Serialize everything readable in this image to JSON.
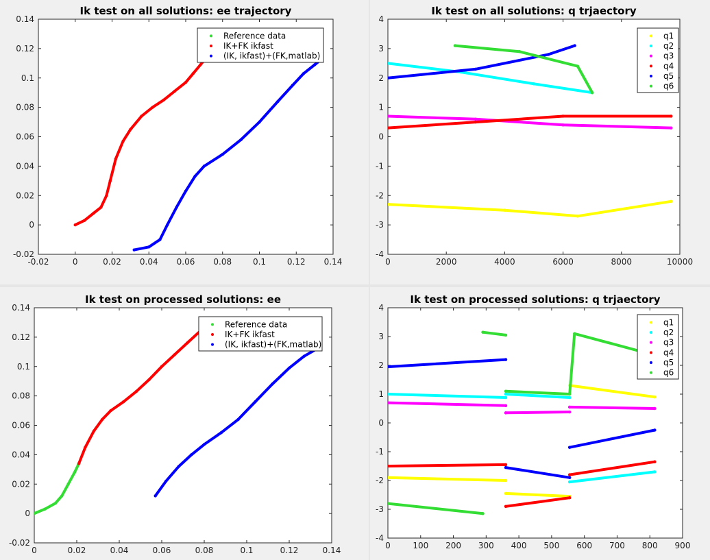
{
  "chart_data": [
    {
      "type": "scatter",
      "title": "Ik test on all solutions: ee trajectory",
      "xlim": [
        -0.02,
        0.14
      ],
      "ylim": [
        -0.02,
        0.14
      ],
      "xticks": [
        "-0.02",
        "0",
        "0.02",
        "0.04",
        "0.06",
        "0.08",
        "0.1",
        "0.12",
        "0.14"
      ],
      "yticks": [
        "-0.02",
        "0",
        "0.02",
        "0.04",
        "0.06",
        "0.08",
        "0.1",
        "0.12",
        "0.14"
      ],
      "legend_position": "top-right",
      "series": [
        {
          "name": "Reference data",
          "color": "#33dd33",
          "x": [],
          "y": []
        },
        {
          "name": "IK+FK ikfast",
          "color": "#ff0000",
          "x": [
            0,
            0.005,
            0.01,
            0.014,
            0.017,
            0.019,
            0.022,
            0.026,
            0.03,
            0.036,
            0.042,
            0.048,
            0.054,
            0.06,
            0.064,
            0.068,
            0.07
          ],
          "y": [
            0,
            0.003,
            0.008,
            0.012,
            0.02,
            0.03,
            0.045,
            0.057,
            0.065,
            0.074,
            0.08,
            0.085,
            0.091,
            0.097,
            0.103,
            0.109,
            0.112
          ]
        },
        {
          "name": "(IK, ikfast)+(FK,matlab)",
          "color": "#0000ff",
          "x": [
            0.032,
            0.04,
            0.046,
            0.05,
            0.055,
            0.06,
            0.065,
            0.07,
            0.08,
            0.09,
            0.1,
            0.11,
            0.118,
            0.124,
            0.13,
            0.133
          ],
          "y": [
            -0.017,
            -0.015,
            -0.01,
            0,
            0.012,
            0.023,
            0.033,
            0.04,
            0.048,
            0.058,
            0.07,
            0.084,
            0.095,
            0.103,
            0.109,
            0.112
          ]
        }
      ]
    },
    {
      "type": "scatter",
      "title": "Ik test on all solutions: q trjaectory",
      "xlim": [
        0,
        10000
      ],
      "ylim": [
        -4,
        4
      ],
      "xticks": [
        "0",
        "2000",
        "4000",
        "6000",
        "8000",
        "10000"
      ],
      "yticks": [
        "-4",
        "-3",
        "-2",
        "-1",
        "0",
        "1",
        "2",
        "3",
        "4"
      ],
      "legend_position": "top-right",
      "series": [
        {
          "name": "q1",
          "color": "#ffff00",
          "x": [
            0,
            4000,
            6500,
            9700
          ],
          "y": [
            -2.3,
            -2.5,
            -2.7,
            -2.2
          ]
        },
        {
          "name": "q2",
          "color": "#00ffff",
          "x": [
            0,
            2500,
            5000,
            7000
          ],
          "y": [
            2.5,
            2.2,
            1.8,
            1.5
          ]
        },
        {
          "name": "q3",
          "color": "#ff00ff",
          "x": [
            0,
            3000,
            6000,
            9700
          ],
          "y": [
            0.7,
            0.6,
            0.4,
            0.3
          ]
        },
        {
          "name": "q4",
          "color": "#ff0000",
          "x": [
            0,
            3000,
            6000,
            9700
          ],
          "y": [
            0.3,
            0.5,
            0.7,
            0.7
          ]
        },
        {
          "name": "q5",
          "color": "#0000ff",
          "x": [
            0,
            3000,
            5500,
            6400
          ],
          "y": [
            2.0,
            2.3,
            2.8,
            3.1
          ]
        },
        {
          "name": "q6",
          "color": "#33dd33",
          "x": [
            2300,
            4500,
            6500,
            7000
          ],
          "y": [
            3.1,
            2.9,
            2.4,
            1.5
          ]
        }
      ]
    },
    {
      "type": "scatter",
      "title": "Ik test on processed solutions: ee",
      "xlim": [
        0,
        0.14
      ],
      "ylim": [
        -0.02,
        0.14
      ],
      "xticks": [
        "0",
        "0.02",
        "0.04",
        "0.06",
        "0.08",
        "0.1",
        "0.12",
        "0.14"
      ],
      "yticks": [
        "-0.02",
        "0",
        "0.02",
        "0.04",
        "0.06",
        "0.08",
        "0.1",
        "0.12",
        "0.14"
      ],
      "legend_position": "top-right",
      "series": [
        {
          "name": "Reference data",
          "color": "#33dd33",
          "x": [
            0,
            0.005,
            0.01,
            0.013,
            0.016,
            0.019,
            0.021
          ],
          "y": [
            0,
            0.003,
            0.007,
            0.012,
            0.02,
            0.028,
            0.034
          ]
        },
        {
          "name": "IK+FK ikfast",
          "color": "#ff0000",
          "x": [
            0.021,
            0.024,
            0.028,
            0.032,
            0.036,
            0.042,
            0.048,
            0.054,
            0.06,
            0.066,
            0.072,
            0.078
          ],
          "y": [
            0.034,
            0.045,
            0.056,
            0.064,
            0.07,
            0.076,
            0.083,
            0.091,
            0.1,
            0.108,
            0.116,
            0.124
          ]
        },
        {
          "name": "(IK, ikfast)+(FK,matlab)",
          "color": "#0000ff",
          "x": [
            0.057,
            0.062,
            0.068,
            0.074,
            0.08,
            0.088,
            0.096,
            0.104,
            0.112,
            0.12,
            0.127,
            0.133
          ],
          "y": [
            0.012,
            0.022,
            0.032,
            0.04,
            0.047,
            0.055,
            0.064,
            0.076,
            0.088,
            0.099,
            0.107,
            0.112
          ]
        }
      ]
    },
    {
      "type": "scatter",
      "title": "Ik test on processed solutions: q trjaectory",
      "xlim": [
        0,
        900
      ],
      "ylim": [
        -4,
        4
      ],
      "xticks": [
        "0",
        "100",
        "200",
        "300",
        "400",
        "500",
        "600",
        "700",
        "800",
        "900"
      ],
      "yticks": [
        "-4",
        "-3",
        "-2",
        "-1",
        "0",
        "1",
        "2",
        "3",
        "4"
      ],
      "legend_position": "top-right",
      "series": [
        {
          "name": "q1",
          "color": "#ffff00",
          "x": [
            0,
            360,
            360,
            555,
            555,
            815
          ],
          "y": [
            -1.9,
            -2.0,
            -2.45,
            -2.55,
            1.3,
            0.9
          ]
        },
        {
          "name": "q2",
          "color": "#00ffff",
          "x": [
            0,
            360,
            360,
            555,
            555,
            815
          ],
          "y": [
            1.0,
            0.88,
            1.0,
            0.88,
            -2.05,
            -1.7
          ]
        },
        {
          "name": "q3",
          "color": "#ff00ff",
          "x": [
            0,
            360,
            360,
            555,
            555,
            815
          ],
          "y": [
            0.7,
            0.6,
            0.35,
            0.38,
            0.55,
            0.5
          ]
        },
        {
          "name": "q4",
          "color": "#ff0000",
          "x": [
            0,
            360,
            360,
            555,
            555,
            815
          ],
          "y": [
            -1.5,
            -1.45,
            -2.9,
            -2.6,
            -1.8,
            -1.35
          ]
        },
        {
          "name": "q5",
          "color": "#0000ff",
          "x": [
            0,
            360,
            360,
            555,
            555,
            815
          ],
          "y": [
            1.95,
            2.2,
            -1.55,
            -1.9,
            -0.85,
            -0.25
          ]
        },
        {
          "name": "q6",
          "color": "#33dd33",
          "x": [
            0,
            290,
            290,
            360,
            360,
            555,
            570,
            800
          ],
          "y": [
            -2.8,
            -3.15,
            3.15,
            3.05,
            1.1,
            1.0,
            3.1,
            2.4
          ]
        }
      ]
    }
  ]
}
